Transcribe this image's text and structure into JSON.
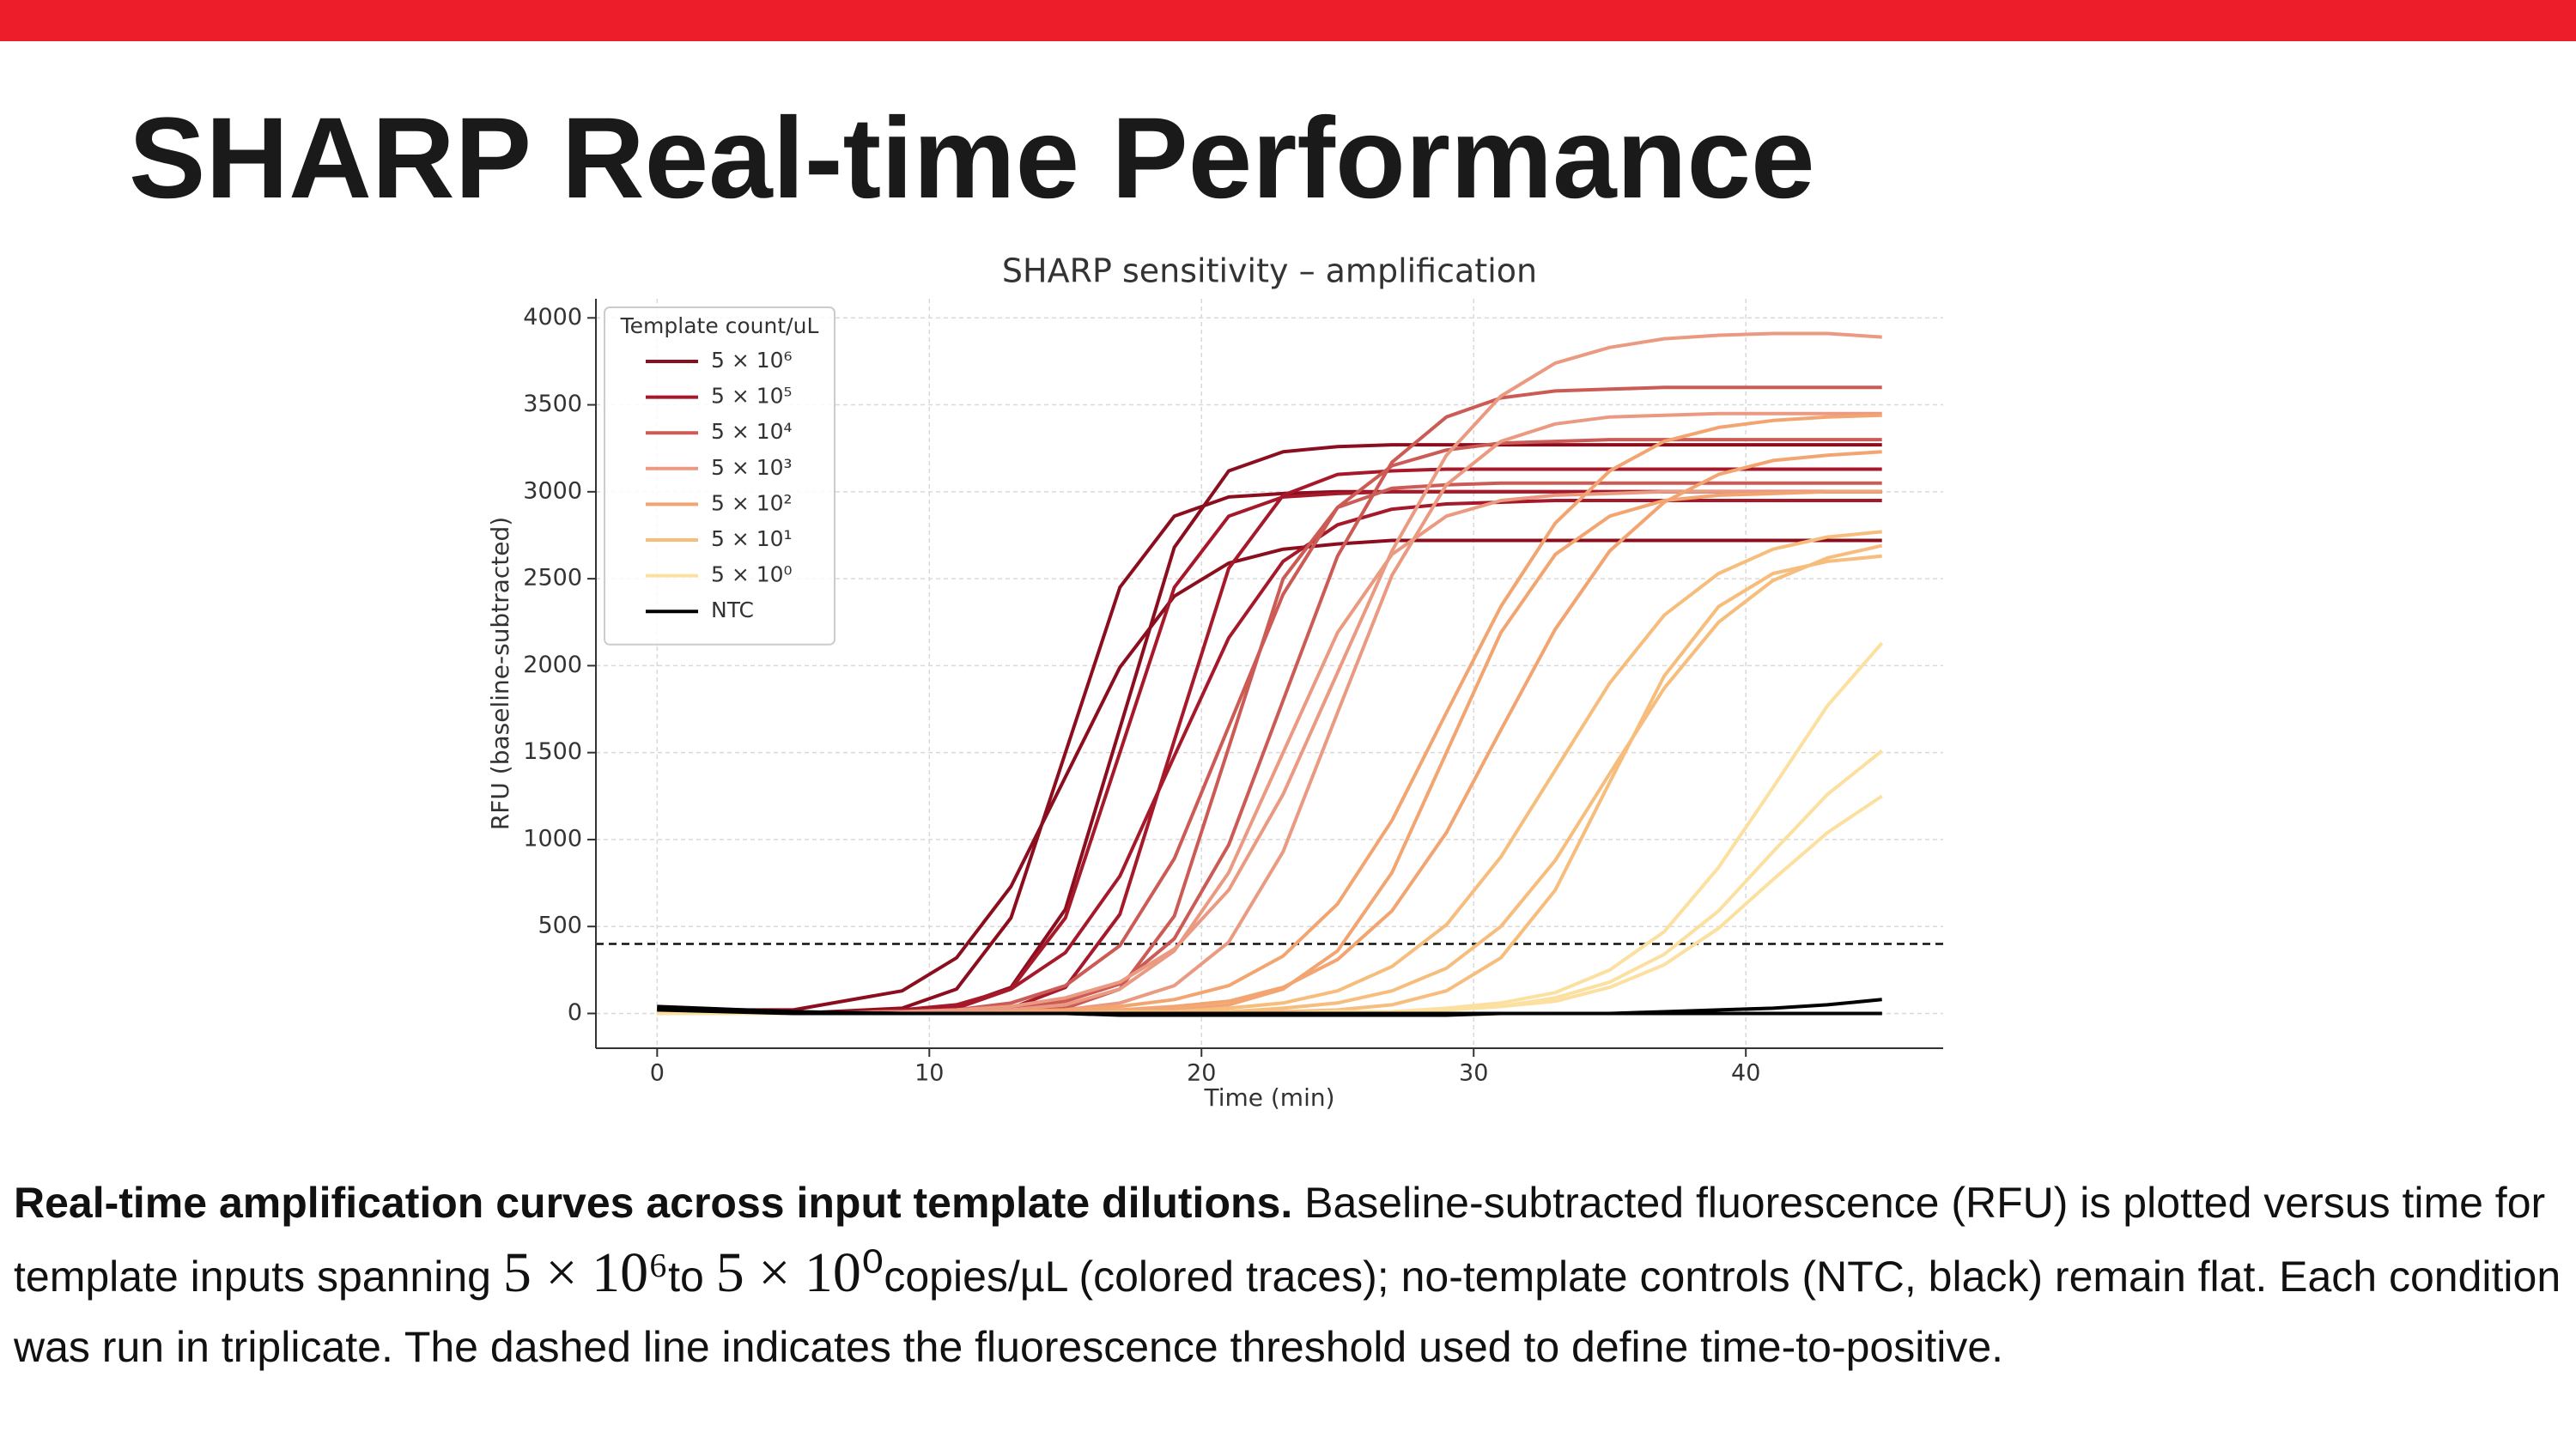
{
  "slide": {
    "title": "SHARP Real-time Performance"
  },
  "chart_data": {
    "type": "line",
    "title": "SHARP sensitivity – amplification",
    "x_label": "Time (min)",
    "y_label": "RFU (baseline-subtracted)",
    "legend_title": "Template count/uL",
    "legend_location": "upper left",
    "grid": true,
    "threshold": 400,
    "xlim": [
      -2.25,
      47.25
    ],
    "ylim": [
      -200,
      4110
    ],
    "xticks": [
      0,
      10,
      20,
      30,
      40
    ],
    "yticks": [
      0,
      500,
      1000,
      1500,
      2000,
      2500,
      3000,
      3500,
      4000
    ],
    "x": [
      0,
      5,
      9,
      11,
      13,
      15,
      17,
      19,
      21,
      23,
      25,
      27,
      29,
      31,
      33,
      35,
      37,
      39,
      41,
      43,
      45
    ],
    "series": [
      {
        "name": "5 × 10⁶",
        "color": "#8b0e1e",
        "replicates": [
          [
            30,
            0,
            30,
            140,
            550,
            1500,
            2450,
            2860,
            2970,
            2990,
            3000,
            3000,
            3000,
            3000,
            3000,
            3000,
            3000,
            3000,
            3000,
            3000,
            3000
          ],
          [
            20,
            20,
            130,
            320,
            730,
            1360,
            1990,
            2400,
            2590,
            2670,
            2700,
            2720,
            2720,
            2720,
            2720,
            2720,
            2720,
            2720,
            2720,
            2720,
            2720
          ],
          [
            0,
            0,
            10,
            40,
            150,
            600,
            1640,
            2680,
            3120,
            3230,
            3260,
            3270,
            3270,
            3270,
            3270,
            3270,
            3270,
            3270,
            3270,
            3270,
            3270
          ]
        ]
      },
      {
        "name": "5 × 10⁵",
        "color": "#a5192b",
        "replicates": [
          [
            0,
            0,
            0,
            10,
            30,
            150,
            570,
            1570,
            2560,
            2980,
            3100,
            3120,
            3130,
            3130,
            3130,
            3130,
            3130,
            3130,
            3130,
            3130,
            3130
          ],
          [
            0,
            0,
            0,
            30,
            140,
            550,
            1500,
            2450,
            2860,
            2970,
            2990,
            3000,
            3000,
            3000,
            3000,
            3000,
            3000,
            3000,
            3000,
            3000,
            3000
          ],
          [
            0,
            0,
            20,
            50,
            140,
            350,
            790,
            1480,
            2160,
            2600,
            2810,
            2900,
            2930,
            2940,
            2950,
            2950,
            2950,
            2950,
            2950,
            2950,
            2950
          ]
        ]
      },
      {
        "name": "5 × 10⁴",
        "color": "#cc5a55",
        "replicates": [
          [
            0,
            0,
            0,
            10,
            30,
            70,
            170,
            430,
            970,
            1800,
            2630,
            3170,
            3430,
            3540,
            3580,
            3590,
            3600,
            3600,
            3600,
            3600,
            3600
          ],
          [
            0,
            0,
            0,
            0,
            10,
            30,
            140,
            560,
            1530,
            2500,
            2910,
            3020,
            3040,
            3050,
            3050,
            3050,
            3050,
            3050,
            3050,
            3050,
            3050
          ],
          [
            0,
            0,
            10,
            20,
            60,
            160,
            390,
            890,
            1650,
            2410,
            2910,
            3150,
            3240,
            3280,
            3290,
            3300,
            3300,
            3300,
            3300,
            3300,
            3300
          ]
        ]
      },
      {
        "name": "5 × 10³",
        "color": "#eb9a82",
        "replicates": [
          [
            0,
            0,
            10,
            20,
            40,
            90,
            180,
            370,
            710,
            1260,
            1960,
            2660,
            3210,
            3550,
            3740,
            3830,
            3880,
            3900,
            3910,
            3910,
            3890
          ],
          [
            0,
            0,
            0,
            0,
            10,
            20,
            60,
            160,
            410,
            930,
            1730,
            2520,
            3040,
            3290,
            3390,
            3430,
            3440,
            3450,
            3450,
            3450,
            3450
          ],
          [
            0,
            0,
            0,
            10,
            20,
            50,
            140,
            360,
            810,
            1500,
            2190,
            2640,
            2860,
            2950,
            2980,
            2990,
            3000,
            3000,
            3000,
            3000,
            3000
          ]
        ]
      },
      {
        "name": "5 × 10²",
        "color": "#f2a571",
        "replicates": [
          [
            0,
            0,
            0,
            0,
            10,
            20,
            40,
            80,
            160,
            330,
            630,
            1110,
            1730,
            2340,
            2820,
            3120,
            3290,
            3370,
            3410,
            3430,
            3440
          ],
          [
            0,
            0,
            0,
            0,
            0,
            10,
            20,
            40,
            70,
            150,
            310,
            590,
            1040,
            1630,
            2210,
            2660,
            2940,
            3100,
            3180,
            3210,
            3230
          ],
          [
            0,
            0,
            0,
            0,
            0,
            0,
            10,
            20,
            50,
            140,
            360,
            810,
            1500,
            2190,
            2640,
            2860,
            2950,
            2980,
            2990,
            3000,
            3000
          ]
        ]
      },
      {
        "name": "5 × 10¹",
        "color": "#f6bd7c",
        "replicates": [
          [
            0,
            0,
            0,
            0,
            0,
            0,
            10,
            10,
            30,
            60,
            130,
            270,
            510,
            900,
            1400,
            1900,
            2290,
            2530,
            2670,
            2740,
            2770
          ],
          [
            0,
            0,
            0,
            0,
            0,
            0,
            0,
            10,
            10,
            30,
            60,
            130,
            260,
            500,
            880,
            1380,
            1870,
            2250,
            2490,
            2620,
            2690
          ],
          [
            0,
            0,
            0,
            0,
            0,
            0,
            0,
            0,
            0,
            10,
            20,
            50,
            130,
            320,
            710,
            1330,
            1940,
            2340,
            2530,
            2600,
            2630
          ]
        ]
      },
      {
        "name": "5 × 10⁰",
        "color": "#fbe0a0",
        "replicates": [
          [
            0,
            0,
            0,
            0,
            0,
            0,
            0,
            0,
            0,
            0,
            10,
            10,
            30,
            60,
            120,
            250,
            470,
            840,
            1300,
            1770,
            2130
          ],
          [
            0,
            0,
            0,
            0,
            0,
            0,
            0,
            0,
            0,
            0,
            0,
            10,
            20,
            40,
            90,
            180,
            340,
            590,
            930,
            1260,
            1510
          ],
          [
            0,
            0,
            0,
            0,
            0,
            0,
            0,
            0,
            0,
            0,
            0,
            10,
            20,
            40,
            70,
            150,
            280,
            490,
            770,
            1040,
            1250
          ]
        ]
      },
      {
        "name": "NTC",
        "color": "#000000",
        "replicates": [
          [
            40,
            10,
            0,
            0,
            0,
            0,
            0,
            0,
            0,
            0,
            0,
            0,
            0,
            0,
            0,
            0,
            10,
            20,
            30,
            50,
            80
          ],
          [
            20,
            0,
            0,
            0,
            0,
            0,
            -10,
            -10,
            -10,
            -10,
            -10,
            -10,
            -10,
            0,
            0,
            0,
            0,
            0,
            0,
            0,
            0
          ],
          [
            30,
            10,
            0,
            0,
            0,
            0,
            0,
            0,
            0,
            0,
            0,
            0,
            0,
            0,
            0,
            0,
            0,
            0,
            0,
            0,
            0
          ]
        ]
      }
    ]
  },
  "caption": {
    "bold": "Real-time amplification curves across input template dilutions.",
    "text_1": "Baseline-subtracted fluorescence (RFU) is plotted versus time for template inputs spanning",
    "math_1": "5 × 10⁶",
    "text_2": "to",
    "math_2": "5 × 10⁰",
    "text_3": "copies/µL (colored traces); no-template controls (NTC, black) remain flat. Each condition was run in triplicate. The dashed line indicates the fluorescence threshold used to define time-to-positive."
  }
}
